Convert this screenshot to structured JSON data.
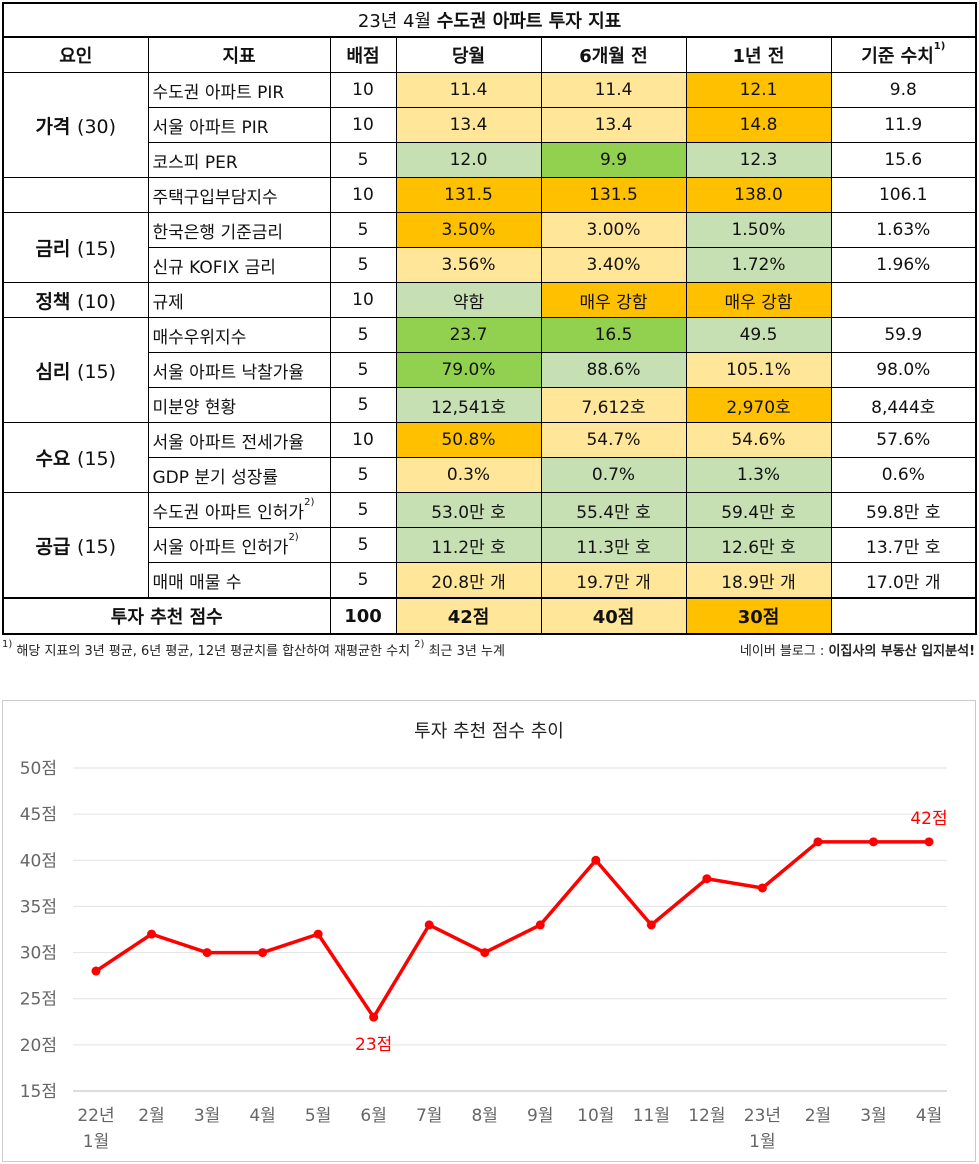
{
  "table": {
    "title_prefix": "23년 4월 ",
    "title_bold": "수도권 아파트 투자 지표",
    "headers": {
      "factor": "요인",
      "indicator": "지표",
      "score": "배점",
      "current": "당월",
      "six_months": "6개월 전",
      "one_year": "1년 전",
      "baseline": "기준 수치",
      "baseline_sup": "1)"
    },
    "groups": [
      {
        "factor": "가격",
        "weight": "(30)",
        "rows": [
          {
            "indicator": "수도권 아파트 PIR",
            "sup": "",
            "score": "10",
            "current": "11.4",
            "six": "11.4",
            "year": "12.1",
            "base": "9.8",
            "colors": [
              "#FFE699",
              "#FFE699",
              "#FFC000"
            ]
          },
          {
            "indicator": "서울 아파트 PIR",
            "sup": "",
            "score": "10",
            "current": "13.4",
            "six": "13.4",
            "year": "14.8",
            "base": "11.9",
            "colors": [
              "#FFE699",
              "#FFE699",
              "#FFC000"
            ]
          },
          {
            "indicator": "코스피 PER",
            "sup": "",
            "score": "5",
            "current": "12.0",
            "six": "9.9",
            "year": "12.3",
            "base": "15.6",
            "colors": [
              "#C6E0B4",
              "#92D050",
              "#C6E0B4"
            ]
          }
        ]
      },
      {
        "factor": "",
        "weight": "",
        "rows": [
          {
            "indicator": "주택구입부담지수",
            "sup": "",
            "score": "10",
            "current": "131.5",
            "six": "131.5",
            "year": "138.0",
            "base": "106.1",
            "colors": [
              "#FFC000",
              "#FFC000",
              "#FFC000"
            ]
          }
        ]
      },
      {
        "factor": "금리",
        "weight": "(15)",
        "rows": [
          {
            "indicator": "한국은행 기준금리",
            "sup": "",
            "score": "5",
            "current": "3.50%",
            "six": "3.00%",
            "year": "1.50%",
            "base": "1.63%",
            "colors": [
              "#FFC000",
              "#FFE699",
              "#C6E0B4"
            ]
          },
          {
            "indicator": "신규 KOFIX 금리",
            "sup": "",
            "score": "5",
            "current": "3.56%",
            "six": "3.40%",
            "year": "1.72%",
            "base": "1.96%",
            "colors": [
              "#FFE699",
              "#FFE699",
              "#C6E0B4"
            ]
          }
        ]
      },
      {
        "factor": "정책",
        "weight": "(10)",
        "rows": [
          {
            "indicator": "규제",
            "sup": "",
            "score": "10",
            "current": "약함",
            "six": "매우 강함",
            "year": "매우 강함",
            "base": "",
            "colors": [
              "#C6E0B4",
              "#FFC000",
              "#FFC000"
            ]
          }
        ]
      },
      {
        "factor": "심리",
        "weight": "(15)",
        "rows": [
          {
            "indicator": "매수우위지수",
            "sup": "",
            "score": "5",
            "current": "23.7",
            "six": "16.5",
            "year": "49.5",
            "base": "59.9",
            "colors": [
              "#92D050",
              "#92D050",
              "#C6E0B4"
            ]
          },
          {
            "indicator": "서울 아파트 낙찰가율",
            "sup": "",
            "score": "5",
            "current": "79.0%",
            "six": "88.6%",
            "year": "105.1%",
            "base": "98.0%",
            "colors": [
              "#92D050",
              "#C6E0B4",
              "#FFE699"
            ]
          },
          {
            "indicator": "미분양 현황",
            "sup": "",
            "score": "5",
            "current": "12,541호",
            "six": "7,612호",
            "year": "2,970호",
            "base": "8,444호",
            "colors": [
              "#C6E0B4",
              "#FFE699",
              "#FFC000"
            ]
          }
        ]
      },
      {
        "factor": "수요",
        "weight": "(15)",
        "rows": [
          {
            "indicator": "서울 아파트 전세가율",
            "sup": "",
            "score": "10",
            "current": "50.8%",
            "six": "54.7%",
            "year": "54.6%",
            "base": "57.6%",
            "colors": [
              "#FFC000",
              "#FFE699",
              "#FFE699"
            ]
          },
          {
            "indicator": "GDP 분기 성장률",
            "sup": "",
            "score": "5",
            "current": "0.3%",
            "six": "0.7%",
            "year": "1.3%",
            "base": "0.6%",
            "colors": [
              "#FFE699",
              "#C6E0B4",
              "#C6E0B4"
            ]
          }
        ]
      },
      {
        "factor": "공급",
        "weight": "(15)",
        "rows": [
          {
            "indicator": "수도권 아파트 인허가",
            "sup": "2)",
            "score": "5",
            "current": "53.0만 호",
            "six": "55.4만 호",
            "year": "59.4만 호",
            "base": "59.8만 호",
            "colors": [
              "#C6E0B4",
              "#C6E0B4",
              "#C6E0B4"
            ]
          },
          {
            "indicator": "서울 아파트 인허가",
            "sup": "2)",
            "score": "5",
            "current": "11.2만 호",
            "six": "11.3만 호",
            "year": "12.6만 호",
            "base": "13.7만 호",
            "colors": [
              "#C6E0B4",
              "#C6E0B4",
              "#C6E0B4"
            ]
          },
          {
            "indicator": "매매 매물 수",
            "sup": "",
            "score": "5",
            "current": "20.8만 개",
            "six": "19.7만 개",
            "year": "18.9만 개",
            "base": "17.0만 개",
            "colors": [
              "#FFE699",
              "#FFE699",
              "#FFE699"
            ]
          }
        ]
      }
    ],
    "total": {
      "label": "투자 추천 점수",
      "score": "100",
      "current": "42점",
      "six": "40점",
      "year": "30점",
      "colors": [
        "#FFE699",
        "#FFE699",
        "#FFC000"
      ]
    }
  },
  "footnote": {
    "sup1": "1)",
    "text1": " 해당 지표의 3년 평균, 6년 평균, 12년 평균치를 합산하여 재평균한 수치 ",
    "sup2": "2)",
    "text2": " 최근 3년 누계"
  },
  "credit": {
    "prefix": "네이버 블로그 : ",
    "name": "이집사의 부동산 입지분석!"
  },
  "chart_data": {
    "type": "line",
    "title": "투자 추천 점수 추이",
    "categories": [
      [
        "22년",
        "1월"
      ],
      [
        "2월"
      ],
      [
        "3월"
      ],
      [
        "4월"
      ],
      [
        "5월"
      ],
      [
        "6월"
      ],
      [
        "7월"
      ],
      [
        "8월"
      ],
      [
        "9월"
      ],
      [
        "10월"
      ],
      [
        "11월"
      ],
      [
        "12월"
      ],
      [
        "23년",
        "1월"
      ],
      [
        "2월"
      ],
      [
        "3월"
      ],
      [
        "4월"
      ]
    ],
    "series": [
      {
        "values": [
          28,
          32,
          30,
          30,
          32,
          23,
          33,
          30,
          33,
          40,
          33,
          38,
          37,
          42,
          42,
          42
        ],
        "color": "#FF0000"
      }
    ],
    "yticks": [
      "15점",
      "20점",
      "25점",
      "30점",
      "35점",
      "40점",
      "45점",
      "50점"
    ],
    "ylim": [
      15,
      50
    ],
    "grid": true,
    "annotations": [
      {
        "index": 5,
        "text": "23점"
      },
      {
        "index": 15,
        "text": "42점"
      }
    ]
  }
}
